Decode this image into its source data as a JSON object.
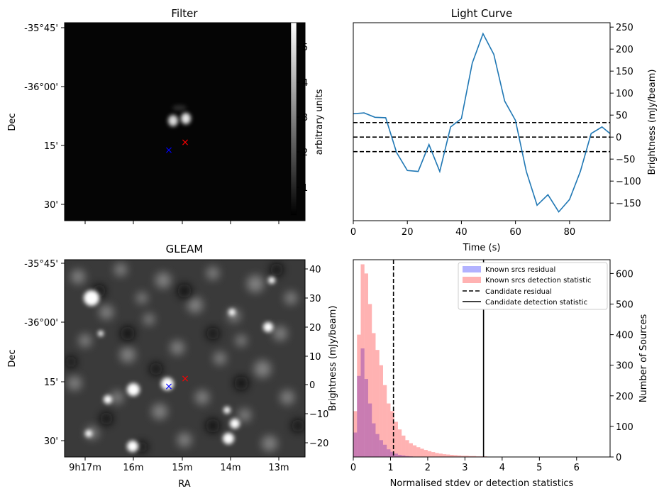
{
  "filter": {
    "title": "Filter",
    "ylabel": "Dec",
    "yticks": [
      "-35°45'",
      "-36°00'",
      "15'",
      "30'"
    ],
    "colorbar_label": "arbitrary units",
    "colorbar_ticks": [
      "1",
      "2",
      "3",
      "4",
      "5"
    ],
    "blue_marker": "×",
    "red_marker": "×"
  },
  "gleam": {
    "title": "GLEAM",
    "ylabel": "Dec",
    "xlabel": "RA",
    "yticks": [
      "-35°45'",
      "-36°00'",
      "15'",
      "30'"
    ],
    "xticks": [
      "9h17m",
      "16m",
      "15m",
      "14m",
      "13m"
    ],
    "colorbar_label": "Brightness (mJy/beam)",
    "colorbar_ticks": [
      "40",
      "30",
      "20",
      "10",
      "0",
      "−10",
      "−20"
    ],
    "blue_marker": "×",
    "red_marker": "×"
  },
  "chart_data": [
    {
      "type": "line",
      "title": "Light Curve",
      "xlabel": "Time (s)",
      "ylabel": "Brightness (mJy/beam)",
      "xlim": [
        0,
        95
      ],
      "ylim": [
        -190,
        260
      ],
      "xticks": [
        0,
        20,
        40,
        60,
        80
      ],
      "yticks": [
        250,
        200,
        150,
        100,
        50,
        0,
        -50,
        -100,
        -150
      ],
      "ytick_labels": [
        "250",
        "200",
        "150",
        "100",
        "50",
        "0",
        "−50",
        "−100",
        "−150"
      ],
      "series": [
        {
          "name": "light curve",
          "color": "#1f77b4",
          "x": [
            0,
            4,
            8,
            12,
            16,
            20,
            24,
            28,
            32,
            36,
            40,
            44,
            48,
            52,
            56,
            60,
            64,
            68,
            72,
            76,
            80,
            84,
            88,
            92,
            95
          ],
          "y": [
            53,
            55,
            45,
            44,
            -35,
            -76,
            -78,
            -17,
            -78,
            23,
            42,
            168,
            235,
            188,
            82,
            38,
            -78,
            -155,
            -131,
            -170,
            -142,
            -78,
            8,
            23,
            8
          ]
        }
      ],
      "hlines": [
        {
          "y": 33,
          "style": "dashed"
        },
        {
          "y": 0,
          "style": "dashed"
        },
        {
          "y": -33,
          "style": "dashed"
        }
      ]
    },
    {
      "type": "bar",
      "xlabel": "Normalised stdev or detection statistics",
      "ylabel": "Number of Sources",
      "xlim": [
        0,
        6.9
      ],
      "ylim": [
        0,
        645
      ],
      "xticks": [
        0,
        1,
        2,
        3,
        4,
        5,
        6
      ],
      "yticks": [
        0,
        100,
        200,
        300,
        400,
        500,
        600
      ],
      "bin_width": 0.1,
      "bin_start": 0,
      "series": [
        {
          "name": "Known srcs residual",
          "color": "#0000ff",
          "alpha": 0.3,
          "values": [
            80,
            265,
            355,
            255,
            175,
            110,
            75,
            55,
            40,
            25,
            17,
            11,
            7,
            5,
            3,
            2,
            1
          ]
        },
        {
          "name": "Known srcs detection statistic",
          "color": "#ff0000",
          "alpha": 0.3,
          "values": [
            150,
            400,
            630,
            600,
            500,
            405,
            350,
            300,
            235,
            175,
            150,
            115,
            90,
            70,
            55,
            45,
            38,
            32,
            27,
            23,
            19,
            16,
            13,
            11,
            9,
            8,
            7,
            6,
            5,
            4,
            4,
            3,
            3,
            2,
            2,
            2,
            1,
            1,
            1,
            1,
            1,
            1,
            1,
            1,
            1,
            1,
            1,
            1
          ]
        }
      ],
      "vlines": [
        {
          "name": "Candidate residual",
          "x": 1.08,
          "style": "dashed"
        },
        {
          "name": "Candidate detection statistic",
          "x": 3.5,
          "style": "solid"
        }
      ],
      "legend_entries": [
        "Known srcs residual",
        "Known srcs detection statistic",
        "Candidate residual",
        "Candidate detection statistic"
      ]
    }
  ]
}
